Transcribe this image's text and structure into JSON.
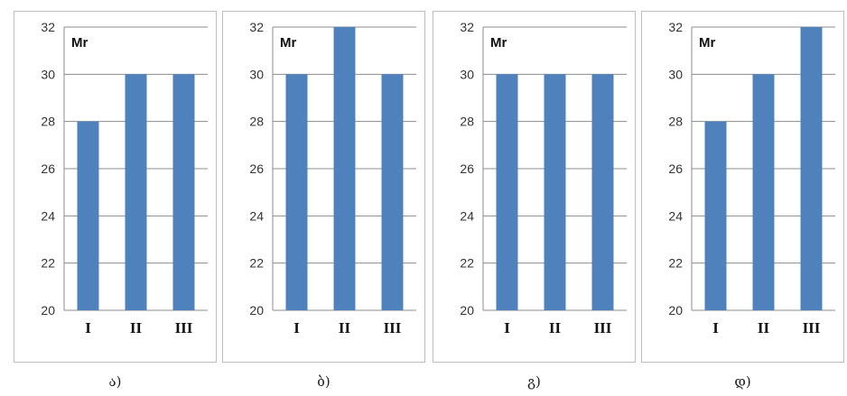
{
  "colors": {
    "bar": "#4f81bd",
    "grid": "#8c8c8c",
    "border": "#bdbdbd"
  },
  "chart_data": [
    {
      "type": "bar",
      "label": "Mr",
      "caption": "ა)",
      "categories": [
        "I",
        "II",
        "III"
      ],
      "values": [
        28,
        30,
        30
      ],
      "ylim": [
        20,
        32
      ],
      "yticks": [
        20,
        22,
        24,
        26,
        28,
        30,
        32
      ],
      "grid": true
    },
    {
      "type": "bar",
      "label": "Mr",
      "caption": "ბ)",
      "categories": [
        "I",
        "II",
        "III"
      ],
      "values": [
        30,
        32,
        30
      ],
      "ylim": [
        20,
        32
      ],
      "yticks": [
        20,
        22,
        24,
        26,
        28,
        30,
        32
      ],
      "grid": true
    },
    {
      "type": "bar",
      "label": "Mr",
      "caption": "გ)",
      "categories": [
        "I",
        "II",
        "III"
      ],
      "values": [
        30,
        30,
        30
      ],
      "ylim": [
        20,
        32
      ],
      "yticks": [
        20,
        22,
        24,
        26,
        28,
        30,
        32
      ],
      "grid": true
    },
    {
      "type": "bar",
      "label": "Mr",
      "caption": "დ)",
      "categories": [
        "I",
        "II",
        "III"
      ],
      "values": [
        28,
        30,
        32
      ],
      "ylim": [
        20,
        32
      ],
      "yticks": [
        20,
        22,
        24,
        26,
        28,
        30,
        32
      ],
      "grid": true
    }
  ]
}
